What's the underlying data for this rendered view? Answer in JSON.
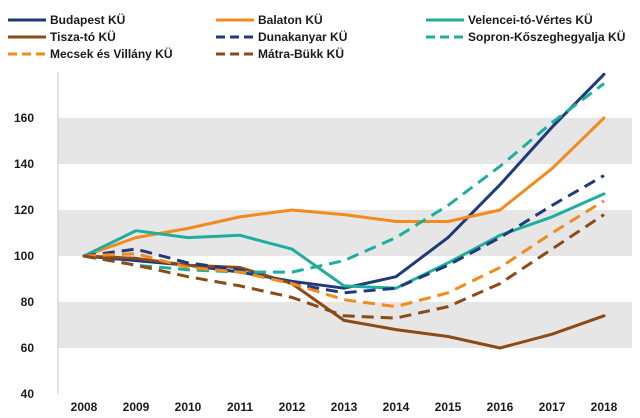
{
  "chart_data": {
    "type": "line",
    "title": "",
    "xlabel": "",
    "ylabel": "",
    "categories": [
      "2008",
      "2009",
      "2010",
      "2011",
      "2012",
      "2013",
      "2014",
      "2015",
      "2016",
      "2017",
      "2018"
    ],
    "ylim": [
      40,
      180
    ],
    "yticks": [
      40,
      60,
      80,
      100,
      120,
      140,
      160
    ],
    "grid": "alternating horizontal bands",
    "legend_position": "top",
    "series": [
      {
        "name": "Budapest KÜ",
        "color": "#1f3a7a",
        "dash": "solid",
        "values": [
          100,
          98,
          96,
          93,
          89,
          86,
          91,
          108,
          131,
          156,
          179
        ]
      },
      {
        "name": "Balaton KÜ",
        "color": "#f28a1e",
        "dash": "solid",
        "values": [
          100,
          108,
          112,
          117,
          120,
          118,
          115,
          115,
          120,
          138,
          160
        ]
      },
      {
        "name": "Velencei-tó-Vértes KÜ",
        "color": "#1fae9d",
        "dash": "solid",
        "values": [
          100,
          111,
          108,
          109,
          103,
          87,
          86,
          97,
          109,
          117,
          127
        ]
      },
      {
        "name": "Tisza-tó KÜ",
        "color": "#8b4a16",
        "dash": "solid",
        "values": [
          100,
          99,
          96,
          95,
          88,
          72,
          68,
          65,
          60,
          66,
          74
        ]
      },
      {
        "name": "Dunakanyar KÜ",
        "color": "#1f3a7a",
        "dash": "dashed",
        "values": [
          100,
          103,
          97,
          94,
          88,
          84,
          86,
          96,
          108,
          122,
          135
        ]
      },
      {
        "name": "Sopron-Kőszeghegyalja KÜ",
        "color": "#1fae9d",
        "dash": "dashed",
        "values": [
          100,
          96,
          94,
          93,
          93,
          98,
          108,
          122,
          139,
          158,
          175
        ]
      },
      {
        "name": "Mecsek és Villány KÜ",
        "color": "#f28a1e",
        "dash": "dashed",
        "values": [
          100,
          101,
          95,
          93,
          88,
          81,
          78,
          84,
          95,
          110,
          124
        ]
      },
      {
        "name": "Mátra-Bükk KÜ",
        "color": "#8b4a16",
        "dash": "dashed",
        "values": [
          100,
          96,
          91,
          87,
          82,
          74,
          73,
          78,
          88,
          103,
          118
        ]
      }
    ]
  }
}
